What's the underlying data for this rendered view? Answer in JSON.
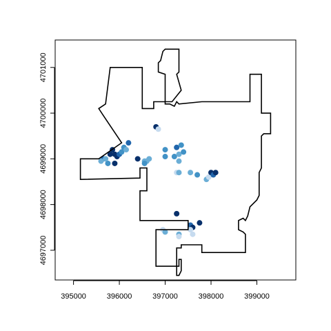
{
  "chart_data": {
    "type": "scatter",
    "title": "",
    "xlabel": "",
    "ylabel": "",
    "xlim": [
      394600,
      399850
    ],
    "ylim": [
      4696350,
      4701600
    ],
    "x_ticks": [
      395000,
      396000,
      397000,
      398000,
      399000
    ],
    "y_ticks": [
      4697000,
      4698000,
      4699000,
      4700000,
      4701000
    ],
    "x_tick_labels": [
      "395000",
      "396000",
      "397000",
      "398000",
      "399000"
    ],
    "y_tick_labels": [
      "4697000",
      "4698000",
      "4699000",
      "4700000",
      "4701000"
    ],
    "grid": false,
    "legend": "none",
    "colors": {
      "dark": "#08306b",
      "mid_dark": "#2166ac",
      "mid": "#4292c6",
      "light": "#6baed6",
      "pale": "#c6dbef",
      "boundary": "#000000"
    },
    "boundary": [
      [
        395150,
        4698550
      ],
      [
        396450,
        4698580
      ],
      [
        396450,
        4698800
      ],
      [
        396600,
        4698800
      ],
      [
        396600,
        4698300
      ],
      [
        396450,
        4698300
      ],
      [
        396450,
        4697650
      ],
      [
        397500,
        4697650
      ],
      [
        397500,
        4697450
      ],
      [
        396800,
        4697450
      ],
      [
        396800,
        4696650
      ],
      [
        397300,
        4696650
      ],
      [
        397300,
        4696800
      ],
      [
        397350,
        4696800
      ],
      [
        397350,
        4696600
      ],
      [
        397350,
        4696550
      ],
      [
        397300,
        4696450
      ],
      [
        397250,
        4696450
      ],
      [
        397250,
        4697050
      ],
      [
        397350,
        4697050
      ],
      [
        397350,
        4697120
      ],
      [
        397800,
        4697120
      ],
      [
        397800,
        4696950
      ],
      [
        398750,
        4696950
      ],
      [
        398750,
        4697350
      ],
      [
        398700,
        4697400
      ],
      [
        398600,
        4697450
      ],
      [
        398600,
        4697650
      ],
      [
        398700,
        4697700
      ],
      [
        398750,
        4697650
      ],
      [
        398800,
        4697750
      ],
      [
        398850,
        4697950
      ],
      [
        399000,
        4698100
      ],
      [
        399050,
        4698200
      ],
      [
        399050,
        4698700
      ],
      [
        399100,
        4698800
      ],
      [
        399100,
        4699500
      ],
      [
        399150,
        4699550
      ],
      [
        399300,
        4699550
      ],
      [
        399300,
        4700000
      ],
      [
        399100,
        4700000
      ],
      [
        399100,
        4700850
      ],
      [
        398850,
        4700850
      ],
      [
        398850,
        4700250
      ],
      [
        397800,
        4700250
      ],
      [
        397300,
        4700200
      ],
      [
        397250,
        4700250
      ],
      [
        397200,
        4700150
      ],
      [
        397100,
        4700200
      ],
      [
        397000,
        4700200
      ],
      [
        397000,
        4700850
      ],
      [
        396850,
        4700900
      ],
      [
        396850,
        4701100
      ],
      [
        396900,
        4701150
      ],
      [
        396950,
        4701350
      ],
      [
        397000,
        4701400
      ],
      [
        397300,
        4701400
      ],
      [
        397300,
        4700900
      ],
      [
        397250,
        4700850
      ],
      [
        397350,
        4700500
      ],
      [
        397150,
        4700250
      ],
      [
        396750,
        4700250
      ],
      [
        396750,
        4700100
      ],
      [
        396500,
        4700100
      ],
      [
        396500,
        4701000
      ],
      [
        395800,
        4701000
      ],
      [
        395700,
        4700200
      ],
      [
        395550,
        4700100
      ],
      [
        395650,
        4699950
      ],
      [
        396050,
        4699350
      ],
      [
        395550,
        4699000
      ],
      [
        395150,
        4699000
      ],
      [
        395150,
        4698550
      ]
    ],
    "points": [
      {
        "x": 395650,
        "y": 4699000,
        "c": "mid_dark"
      },
      {
        "x": 395600,
        "y": 4698950,
        "c": "light"
      },
      {
        "x": 395750,
        "y": 4698900,
        "c": "mid"
      },
      {
        "x": 395800,
        "y": 4699100,
        "c": "dark"
      },
      {
        "x": 395850,
        "y": 4699200,
        "c": "dark"
      },
      {
        "x": 395900,
        "y": 4699100,
        "c": "dark"
      },
      {
        "x": 395950,
        "y": 4699050,
        "c": "dark"
      },
      {
        "x": 396000,
        "y": 4699100,
        "c": "mid_dark"
      },
      {
        "x": 396050,
        "y": 4699150,
        "c": "mid"
      },
      {
        "x": 396100,
        "y": 4699250,
        "c": "mid"
      },
      {
        "x": 396150,
        "y": 4699200,
        "c": "light"
      },
      {
        "x": 396200,
        "y": 4699350,
        "c": "mid_dark"
      },
      {
        "x": 395900,
        "y": 4698900,
        "c": "dark"
      },
      {
        "x": 395700,
        "y": 4699000,
        "c": "light"
      },
      {
        "x": 396400,
        "y": 4699000,
        "c": "dark"
      },
      {
        "x": 396550,
        "y": 4698950,
        "c": "light"
      },
      {
        "x": 396600,
        "y": 4698950,
        "c": "light"
      },
      {
        "x": 396650,
        "y": 4699000,
        "c": "light"
      },
      {
        "x": 396550,
        "y": 4698900,
        "c": "mid"
      },
      {
        "x": 396800,
        "y": 4699700,
        "c": "dark"
      },
      {
        "x": 396850,
        "y": 4699650,
        "c": "pale"
      },
      {
        "x": 397000,
        "y": 4699200,
        "c": "mid"
      },
      {
        "x": 397000,
        "y": 4699050,
        "c": "mid"
      },
      {
        "x": 397200,
        "y": 4699050,
        "c": "mid"
      },
      {
        "x": 397250,
        "y": 4699250,
        "c": "mid_dark"
      },
      {
        "x": 397300,
        "y": 4699100,
        "c": "light"
      },
      {
        "x": 397350,
        "y": 4699300,
        "c": "mid"
      },
      {
        "x": 397400,
        "y": 4699150,
        "c": "mid"
      },
      {
        "x": 397300,
        "y": 4698950,
        "c": "light"
      },
      {
        "x": 397250,
        "y": 4698700,
        "c": "pale"
      },
      {
        "x": 397300,
        "y": 4698700,
        "c": "light"
      },
      {
        "x": 397550,
        "y": 4698700,
        "c": "light"
      },
      {
        "x": 397700,
        "y": 4698650,
        "c": "mid"
      },
      {
        "x": 397900,
        "y": 4698550,
        "c": "light"
      },
      {
        "x": 397950,
        "y": 4698600,
        "c": "pale"
      },
      {
        "x": 398000,
        "y": 4698700,
        "c": "dark"
      },
      {
        "x": 398050,
        "y": 4698650,
        "c": "mid_dark"
      },
      {
        "x": 398100,
        "y": 4698700,
        "c": "dark"
      },
      {
        "x": 397250,
        "y": 4697800,
        "c": "dark"
      },
      {
        "x": 396950,
        "y": 4697450,
        "c": "pale"
      },
      {
        "x": 397000,
        "y": 4697400,
        "c": "light"
      },
      {
        "x": 397300,
        "y": 4697350,
        "c": "light"
      },
      {
        "x": 397300,
        "y": 4697300,
        "c": "pale"
      },
      {
        "x": 397550,
        "y": 4697550,
        "c": "mid_dark"
      },
      {
        "x": 397600,
        "y": 4697500,
        "c": "dark"
      },
      {
        "x": 397550,
        "y": 4697450,
        "c": "pale"
      },
      {
        "x": 397750,
        "y": 4697600,
        "c": "dark"
      },
      {
        "x": 397600,
        "y": 4697350,
        "c": "pale"
      }
    ]
  }
}
